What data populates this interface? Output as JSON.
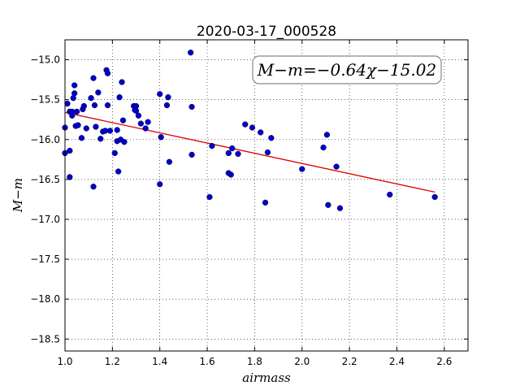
{
  "chart_data": {
    "type": "scatter",
    "title": "2020-03-17_000528",
    "xlabel": "airmass",
    "ylabel": "M−m",
    "xlim": [
      1.0,
      2.7
    ],
    "ylim": [
      -18.65,
      -14.75
    ],
    "y_inverted": false,
    "grid": true,
    "xticks": [
      1.0,
      1.2,
      1.4,
      1.6,
      1.8,
      2.0,
      2.2,
      2.4,
      2.6
    ],
    "xtick_labels": [
      "1.0",
      "1.2",
      "1.4",
      "1.6",
      "1.8",
      "2.0",
      "2.2",
      "2.4",
      "2.6"
    ],
    "yticks": [
      -15.0,
      -15.5,
      -16.0,
      -16.5,
      -17.0,
      -17.5,
      -18.0,
      -18.5
    ],
    "ytick_labels": [
      "−15.0",
      "−15.5",
      "−16.0",
      "−16.5",
      "−17.0",
      "−17.5",
      "−18.0",
      "−18.5"
    ],
    "annotation": "M−m=−0.64χ−15.02",
    "colors": {
      "points": "#0000cc",
      "fit": "#dd0000"
    },
    "fit_line": {
      "slope": -0.64,
      "intercept": -15.02,
      "x_range": [
        1.0,
        2.56
      ]
    },
    "points": [
      [
        1.0,
        -15.85
      ],
      [
        1.0,
        -16.17
      ],
      [
        1.01,
        -15.55
      ],
      [
        1.02,
        -15.65
      ],
      [
        1.02,
        -16.47
      ],
      [
        1.02,
        -16.14
      ],
      [
        1.03,
        -15.7
      ],
      [
        1.03,
        -15.65
      ],
      [
        1.035,
        -15.48
      ],
      [
        1.04,
        -15.32
      ],
      [
        1.04,
        -15.42
      ],
      [
        1.045,
        -15.83
      ],
      [
        1.05,
        -15.65
      ],
      [
        1.055,
        -15.82
      ],
      [
        1.07,
        -15.98
      ],
      [
        1.075,
        -15.62
      ],
      [
        1.08,
        -15.58
      ],
      [
        1.09,
        -15.86
      ],
      [
        1.11,
        -15.48
      ],
      [
        1.12,
        -15.23
      ],
      [
        1.12,
        -16.59
      ],
      [
        1.125,
        -15.57
      ],
      [
        1.13,
        -15.84
      ],
      [
        1.14,
        -15.41
      ],
      [
        1.15,
        -15.99
      ],
      [
        1.16,
        -15.9
      ],
      [
        1.17,
        -15.89
      ],
      [
        1.175,
        -15.13
      ],
      [
        1.18,
        -15.17
      ],
      [
        1.18,
        -15.57
      ],
      [
        1.19,
        -15.89
      ],
      [
        1.21,
        -16.17
      ],
      [
        1.22,
        -16.02
      ],
      [
        1.22,
        -15.88
      ],
      [
        1.225,
        -16.4
      ],
      [
        1.23,
        -15.47
      ],
      [
        1.235,
        -16.0
      ],
      [
        1.24,
        -15.28
      ],
      [
        1.245,
        -15.76
      ],
      [
        1.25,
        -16.03
      ],
      [
        1.29,
        -15.58
      ],
      [
        1.295,
        -15.63
      ],
      [
        1.3,
        -15.58
      ],
      [
        1.3,
        -15.64
      ],
      [
        1.31,
        -15.7
      ],
      [
        1.32,
        -15.8
      ],
      [
        1.34,
        -15.86
      ],
      [
        1.35,
        -15.78
      ],
      [
        1.4,
        -15.43
      ],
      [
        1.4,
        -16.56
      ],
      [
        1.405,
        -15.97
      ],
      [
        1.43,
        -15.57
      ],
      [
        1.435,
        -15.47
      ],
      [
        1.44,
        -16.28
      ],
      [
        1.53,
        -14.91
      ],
      [
        1.535,
        -15.59
      ],
      [
        1.535,
        -16.19
      ],
      [
        1.61,
        -16.72
      ],
      [
        1.62,
        -16.08
      ],
      [
        1.69,
        -16.42
      ],
      [
        1.69,
        -16.17
      ],
      [
        1.7,
        -16.44
      ],
      [
        1.705,
        -16.11
      ],
      [
        1.73,
        -16.18
      ],
      [
        1.76,
        -15.81
      ],
      [
        1.79,
        -15.85
      ],
      [
        1.825,
        -15.91
      ],
      [
        1.845,
        -16.79
      ],
      [
        1.855,
        -16.16
      ],
      [
        1.87,
        -15.98
      ],
      [
        2.0,
        -16.37
      ],
      [
        2.09,
        -16.1
      ],
      [
        2.105,
        -15.94
      ],
      [
        2.11,
        -16.82
      ],
      [
        2.145,
        -16.34
      ],
      [
        2.16,
        -16.86
      ],
      [
        2.37,
        -16.69
      ],
      [
        2.56,
        -16.72
      ]
    ]
  }
}
